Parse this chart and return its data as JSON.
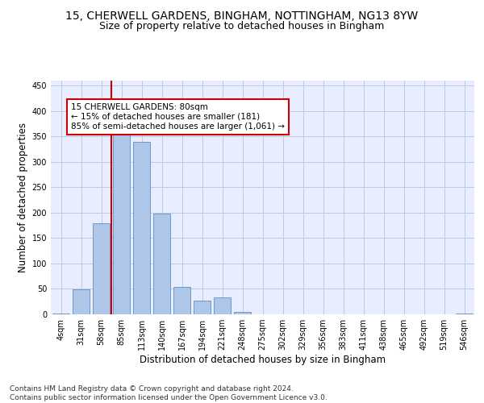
{
  "title_line1": "15, CHERWELL GARDENS, BINGHAM, NOTTINGHAM, NG13 8YW",
  "title_line2": "Size of property relative to detached houses in Bingham",
  "xlabel": "Distribution of detached houses by size in Bingham",
  "ylabel": "Number of detached properties",
  "bar_labels": [
    "4sqm",
    "31sqm",
    "58sqm",
    "85sqm",
    "113sqm",
    "140sqm",
    "167sqm",
    "194sqm",
    "221sqm",
    "248sqm",
    "275sqm",
    "302sqm",
    "329sqm",
    "356sqm",
    "383sqm",
    "411sqm",
    "438sqm",
    "465sqm",
    "492sqm",
    "519sqm",
    "546sqm"
  ],
  "bar_values": [
    2,
    49,
    180,
    367,
    340,
    199,
    54,
    27,
    33,
    5,
    0,
    0,
    0,
    0,
    0,
    0,
    0,
    0,
    0,
    0,
    2
  ],
  "bar_color": "#aec6e8",
  "bar_edge_color": "#5b8fc9",
  "background_color": "#e8eeff",
  "grid_color": "#c0c8e0",
  "vline_x_index": 3,
  "vline_color": "#cc0000",
  "annotation_text": "15 CHERWELL GARDENS: 80sqm\n← 15% of detached houses are smaller (181)\n85% of semi-detached houses are larger (1,061) →",
  "annotation_box_color": "#ffffff",
  "annotation_box_edge_color": "#cc0000",
  "ylim": [
    0,
    460
  ],
  "yticks": [
    0,
    50,
    100,
    150,
    200,
    250,
    300,
    350,
    400,
    450
  ],
  "footer_text": "Contains HM Land Registry data © Crown copyright and database right 2024.\nContains public sector information licensed under the Open Government Licence v3.0.",
  "title_fontsize": 10,
  "subtitle_fontsize": 9,
  "axis_label_fontsize": 8.5,
  "tick_fontsize": 7,
  "footer_fontsize": 6.5,
  "annotation_fontsize": 7.5
}
